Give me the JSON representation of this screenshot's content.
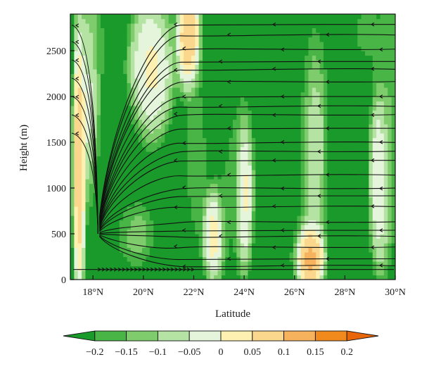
{
  "chart_data": {
    "type": "heatmap",
    "title": "",
    "xlabel": "Latitude",
    "ylabel": "Height (m)",
    "xlim": [
      17.1,
      30.0
    ],
    "ylim": [
      0,
      2900
    ],
    "x_ticks": [
      18,
      20,
      22,
      24,
      26,
      28,
      30
    ],
    "x_tick_labels": [
      "18°N",
      "20°N",
      "22°N",
      "24°N",
      "26°N",
      "28°N",
      "30°N"
    ],
    "y_ticks": [
      0,
      500,
      1000,
      1500,
      2000,
      2500
    ],
    "y_tick_labels": [
      "0",
      "500",
      "1000",
      "1500",
      "2000",
      "2500"
    ],
    "colorbar": {
      "levels": [
        -0.2,
        -0.15,
        -0.1,
        -0.05,
        0,
        0.05,
        0.1,
        0.15,
        0.2
      ],
      "labels": [
        "−0.2",
        "−0.15",
        "−0.1",
        "−0.05",
        "0",
        "0.05",
        "0.1",
        "0.15",
        "0.2"
      ],
      "colors": [
        "#1a9a2a",
        "#49b547",
        "#7fcc6c",
        "#b5e3a3",
        "#e4f5dc",
        "#fdf0b0",
        "#fad78c",
        "#f6b25c",
        "#f08a1c",
        "#e8650a"
      ],
      "extend": "both",
      "placement": "bottom"
    },
    "field_features": [
      {
        "lat": 17.45,
        "height": 1300,
        "value": 0.17,
        "lat_halfwidth": 0.2,
        "height_halfwidth": 1200
      },
      {
        "lat": 17.9,
        "height": 2100,
        "value": 0.04,
        "lat_halfwidth": 0.3,
        "height_halfwidth": 900
      },
      {
        "lat": 18.3,
        "height": 2600,
        "value": -0.18,
        "lat_halfwidth": 0.5,
        "height_halfwidth": 500
      },
      {
        "lat": 18.9,
        "height": 1200,
        "value": -0.22,
        "lat_halfwidth": 0.7,
        "height_halfwidth": 700
      },
      {
        "lat": 19.7,
        "height": 500,
        "value": -0.08,
        "lat_halfwidth": 0.6,
        "height_halfwidth": 300
      },
      {
        "lat": 20.3,
        "height": 2300,
        "value": 0.07,
        "lat_halfwidth": 0.7,
        "height_halfwidth": 600
      },
      {
        "lat": 21.8,
        "height": 2650,
        "value": 0.18,
        "lat_halfwidth": 0.35,
        "height_halfwidth": 450
      },
      {
        "lat": 22.1,
        "height": 1300,
        "value": -0.12,
        "lat_halfwidth": 0.35,
        "height_halfwidth": 700
      },
      {
        "lat": 22.8,
        "height": 500,
        "value": 0.1,
        "lat_halfwidth": 0.35,
        "height_halfwidth": 400
      },
      {
        "lat": 23.4,
        "height": 1200,
        "value": -0.17,
        "lat_halfwidth": 0.4,
        "height_halfwidth": 900
      },
      {
        "lat": 24.0,
        "height": 1000,
        "value": 0.09,
        "lat_halfwidth": 0.3,
        "height_halfwidth": 700
      },
      {
        "lat": 25.0,
        "height": 2300,
        "value": -0.22,
        "lat_halfwidth": 1.6,
        "height_halfwidth": 600
      },
      {
        "lat": 25.5,
        "height": 1100,
        "value": -0.2,
        "lat_halfwidth": 0.8,
        "height_halfwidth": 800
      },
      {
        "lat": 26.6,
        "height": 250,
        "value": 0.22,
        "lat_halfwidth": 0.45,
        "height_halfwidth": 300
      },
      {
        "lat": 26.8,
        "height": 1500,
        "value": 0.02,
        "lat_halfwidth": 0.4,
        "height_halfwidth": 900
      },
      {
        "lat": 27.9,
        "height": 1300,
        "value": -0.21,
        "lat_halfwidth": 0.6,
        "height_halfwidth": 800
      },
      {
        "lat": 28.9,
        "height": 2700,
        "value": -0.16,
        "lat_halfwidth": 0.9,
        "height_halfwidth": 400
      },
      {
        "lat": 29.4,
        "height": 1100,
        "value": 0.06,
        "lat_halfwidth": 0.35,
        "height_halfwidth": 800
      },
      {
        "lat": 29.85,
        "height": 1800,
        "value": -0.13,
        "lat_halfwidth": 0.3,
        "height_halfwidth": 1200
      }
    ],
    "streamlines": {
      "dominant_direction": "westward (toward lower latitude)",
      "levels_m": [
        150,
        250,
        350,
        450,
        550,
        650,
        780,
        900,
        1020,
        1150,
        1280,
        1400,
        1520,
        1650,
        1780,
        1900,
        2020,
        2150,
        2280,
        2400,
        2530,
        2650,
        2780
      ],
      "convergence": {
        "lat": 18.2,
        "height": 500
      },
      "near_surface_arrows": {
        "height": 110,
        "lat_from": 18.3,
        "lat_to": 22.0,
        "count": 24,
        "direction": "eastward"
      }
    },
    "grid": false
  },
  "colors": {
    "axis": "#111111",
    "streamline": "#111111",
    "background": "#ffffff"
  }
}
